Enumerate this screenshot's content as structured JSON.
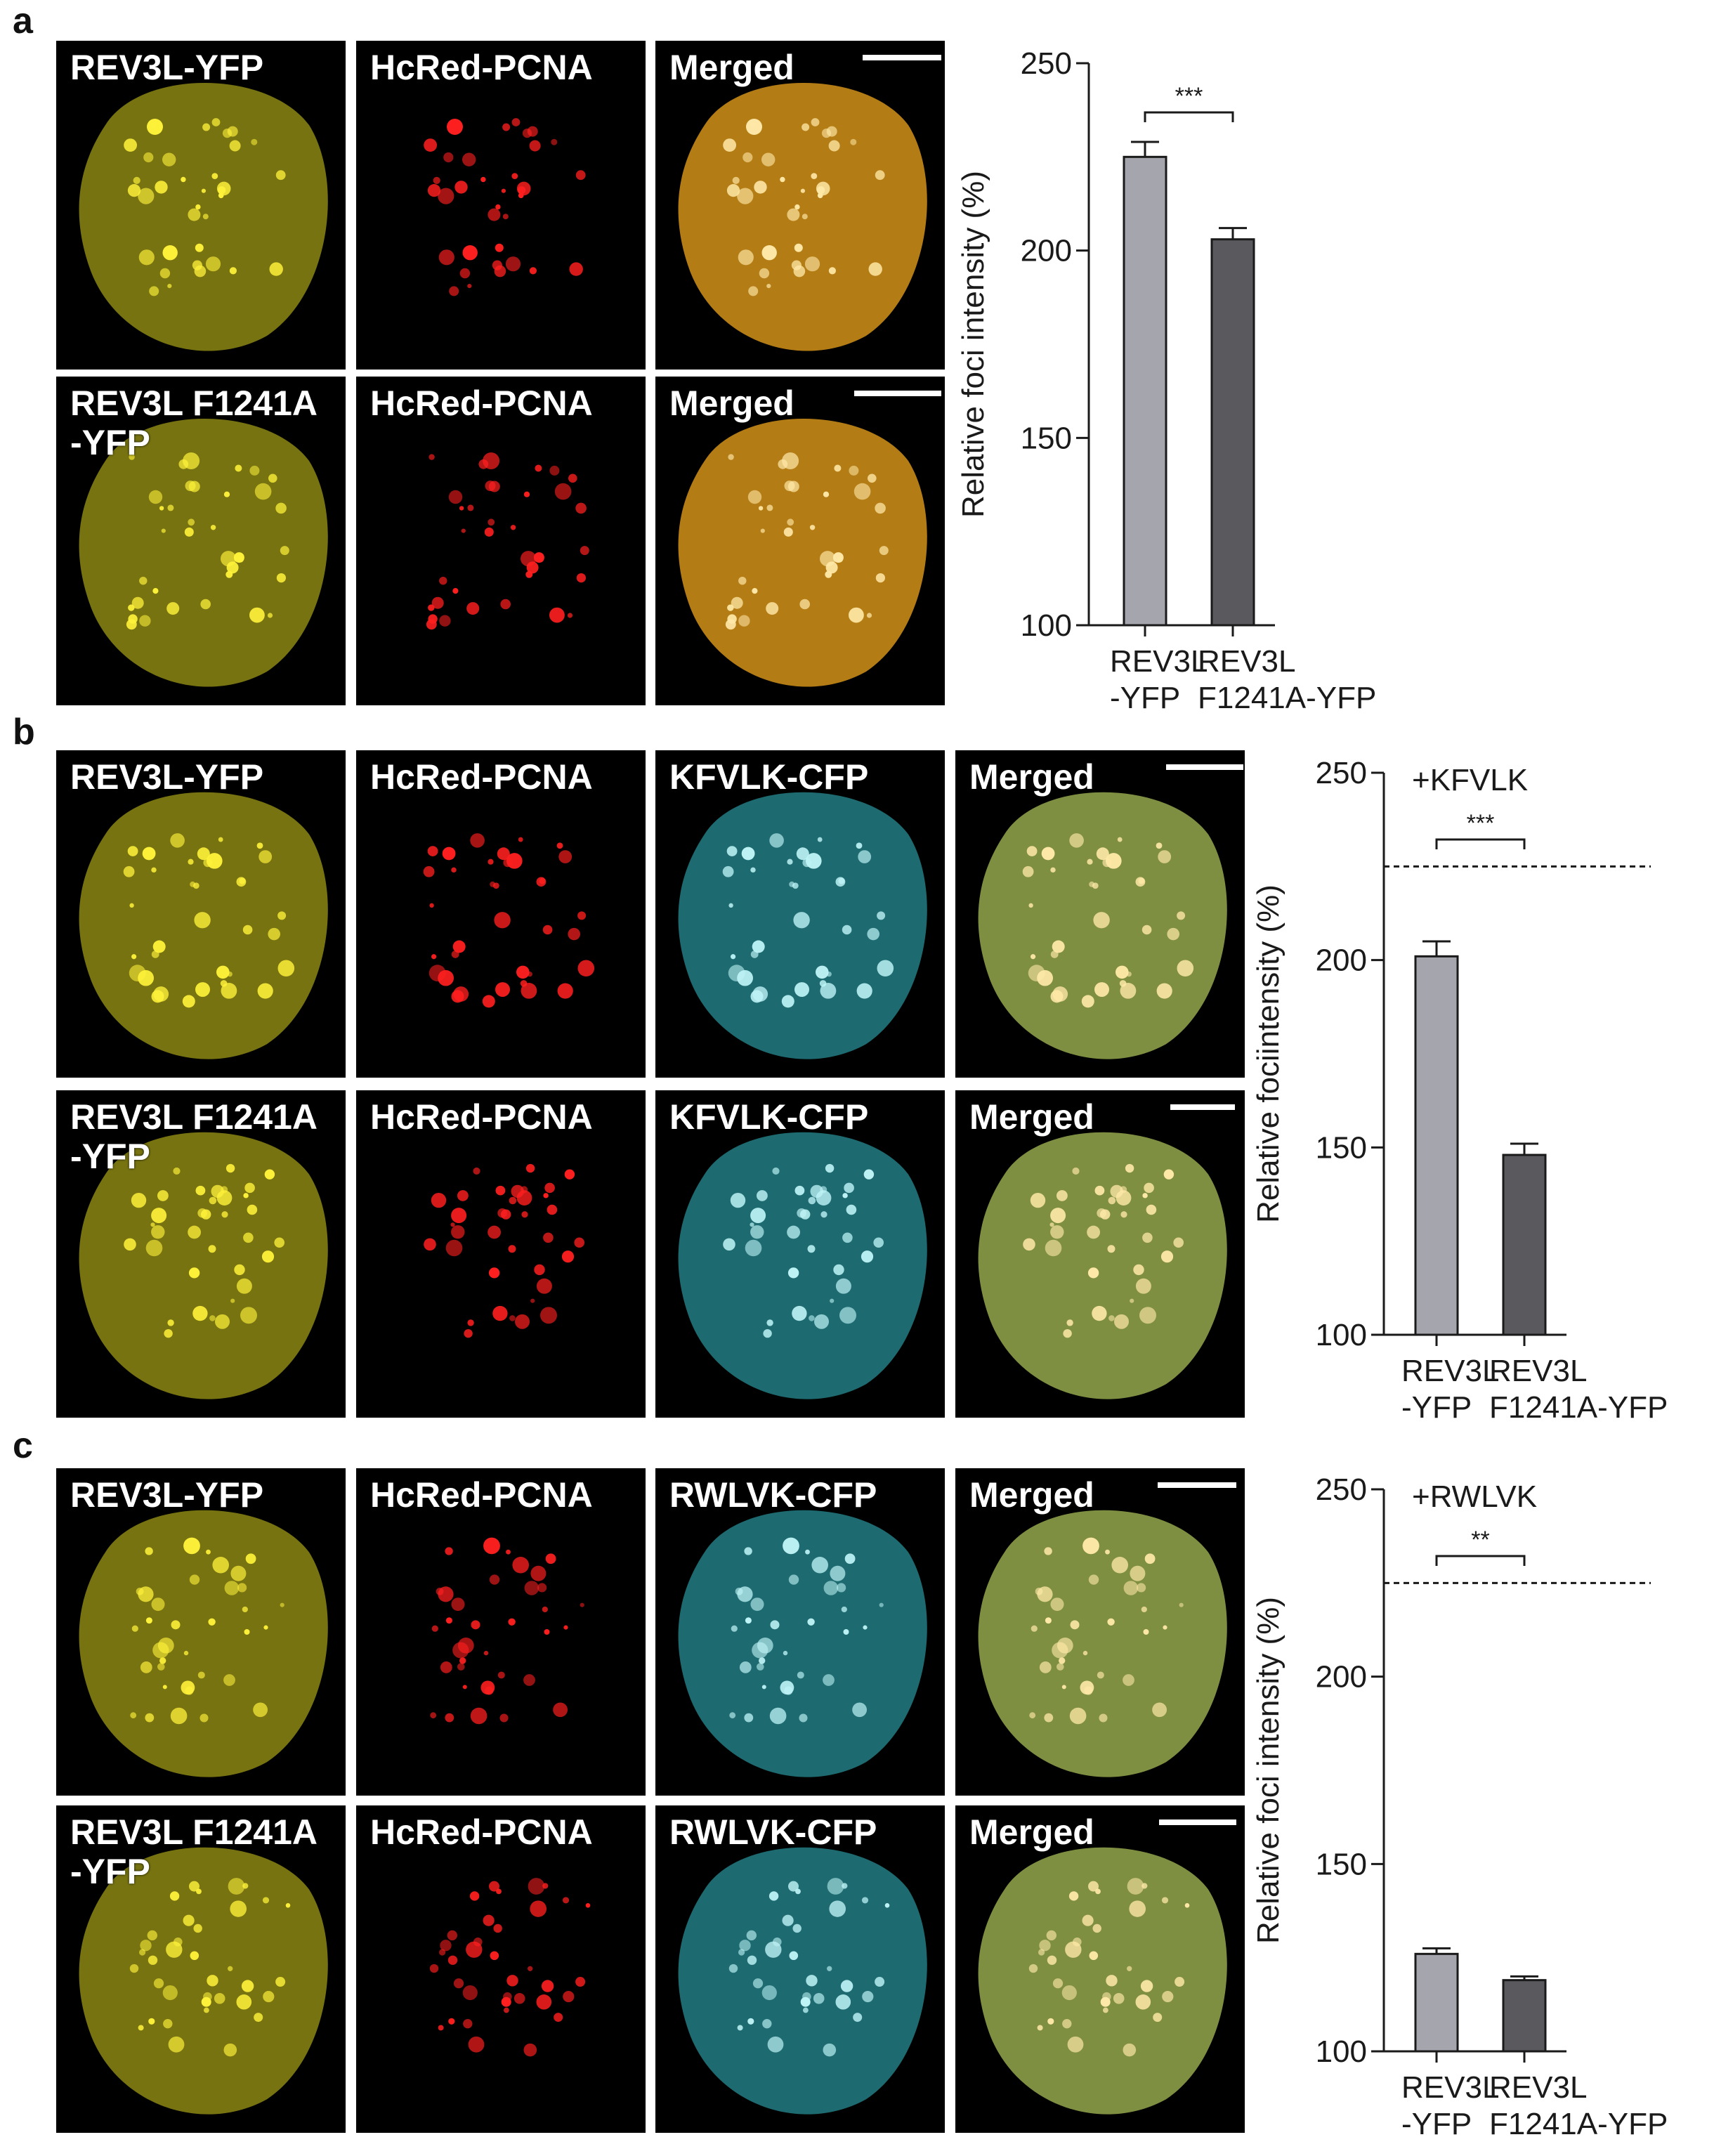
{
  "panels": [
    {
      "letter": "a",
      "rows": [
        {
          "labels": [
            "REV3L-YFP",
            "HcRed-PCNA",
            "Merged"
          ]
        },
        {
          "labels": [
            "REV3L F1241A\n-YFP",
            "HcRed-PCNA",
            "Merged"
          ]
        }
      ]
    },
    {
      "letter": "b",
      "rows": [
        {
          "labels": [
            "REV3L-YFP",
            "HcRed-PCNA",
            "KFVLK-CFP",
            "Merged"
          ]
        },
        {
          "labels": [
            "REV3L F1241A\n-YFP",
            "HcRed-PCNA",
            "KFVLK-CFP",
            "Merged"
          ]
        }
      ]
    },
    {
      "letter": "c",
      "rows": [
        {
          "labels": [
            "REV3L-YFP",
            "HcRed-PCNA",
            "RWLVK-CFP",
            "Merged"
          ]
        },
        {
          "labels": [
            "REV3L F1241A\n-YFP",
            "HcRed-PCNA",
            "RWLVK-CFP",
            "Merged"
          ]
        }
      ]
    }
  ],
  "colors": {
    "yfp": "#d9d21f",
    "hcred": "#ff1f1f",
    "cfp": "#35c3cc",
    "merged": "#a9bf58",
    "merged_a": "#f0a51c",
    "bar_wt": "#a5a5ad",
    "bar_mut": "#5a5a5e"
  },
  "chart_data": [
    {
      "type": "bar",
      "ylabel": "Relative foci intensity (%)",
      "ylim": [
        100,
        250
      ],
      "yticks": [
        100,
        150,
        200,
        250
      ],
      "categories": [
        "REV3L\n-YFP",
        "REV3L\nF1241A-YFP"
      ],
      "values": [
        225,
        203
      ],
      "errors": [
        4,
        3
      ],
      "significance": "***",
      "annotation": "",
      "reference_line": null
    },
    {
      "type": "bar",
      "ylabel": "Relative fociintensity (%)",
      "ylim": [
        100,
        250
      ],
      "yticks": [
        100,
        150,
        200,
        250
      ],
      "categories": [
        "REV3L\n-YFP",
        "REV3L\nF1241A-YFP"
      ],
      "values": [
        201,
        148
      ],
      "errors": [
        4,
        3
      ],
      "significance": "***",
      "annotation": "+KFVLK",
      "reference_line": 225
    },
    {
      "type": "bar",
      "ylabel": "Relative foci intensity (%)",
      "ylim": [
        100,
        250
      ],
      "yticks": [
        100,
        150,
        200,
        250
      ],
      "categories": [
        "REV3L\n-YFP",
        "REV3L\nF1241A-YFP"
      ],
      "values": [
        126,
        119
      ],
      "errors": [
        1.5,
        1
      ],
      "significance": "**",
      "annotation": "+RWLVK",
      "reference_line": 225
    }
  ]
}
